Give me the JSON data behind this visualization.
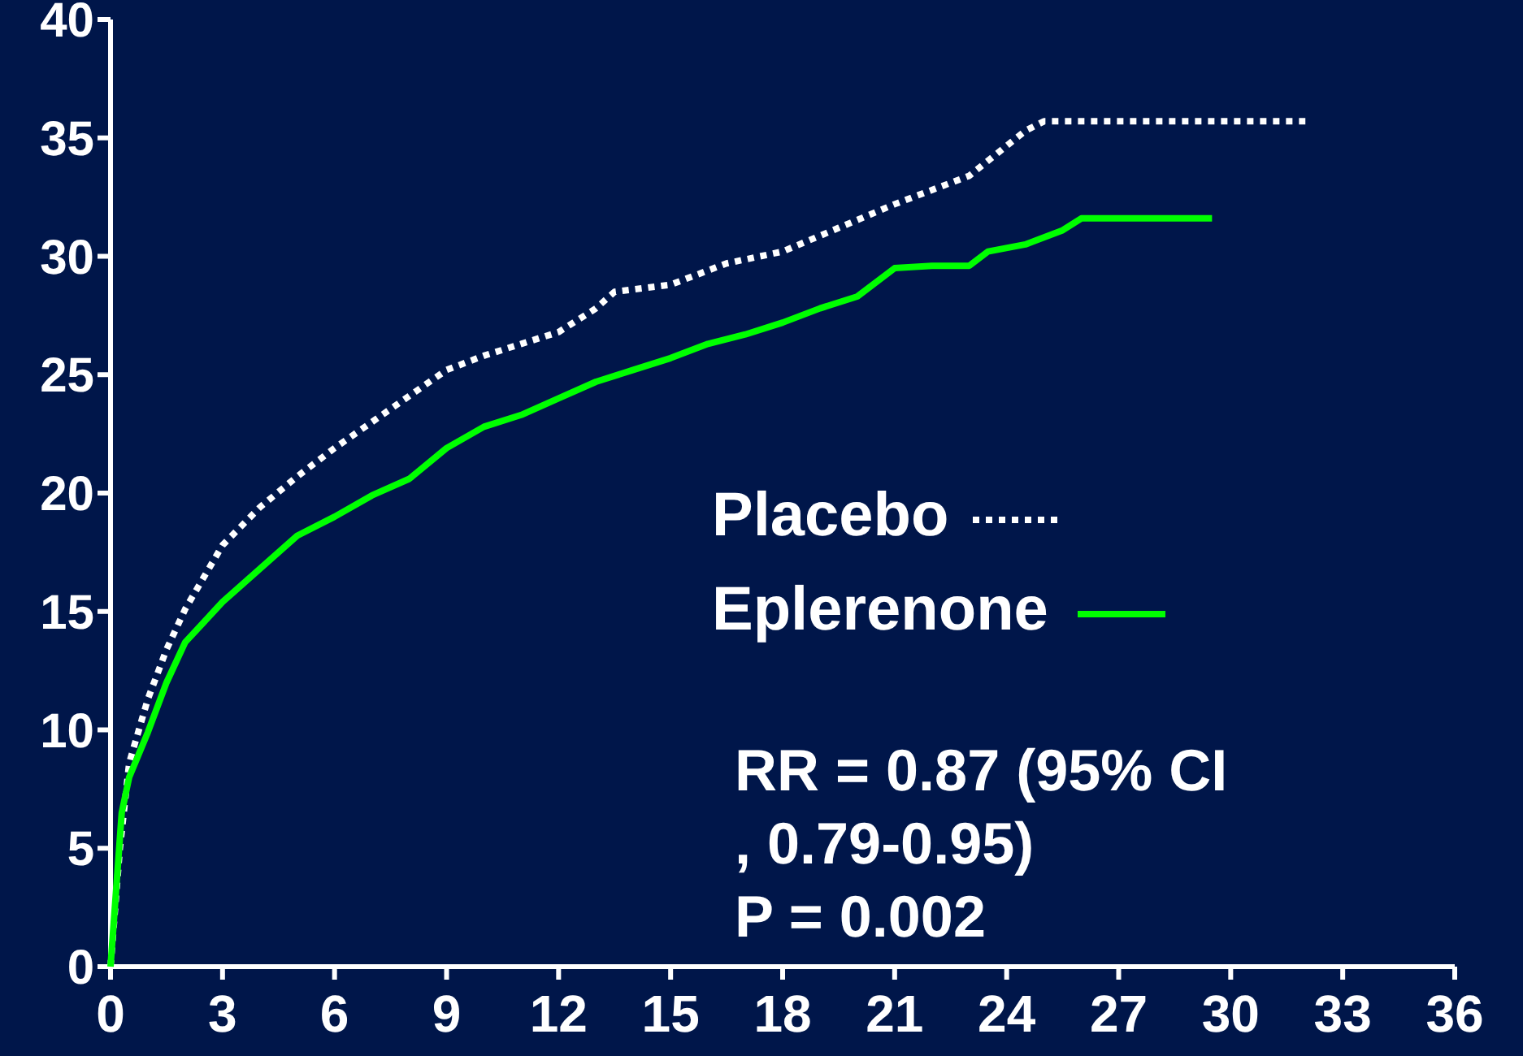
{
  "chart_data": {
    "type": "line",
    "xlim": [
      0,
      36
    ],
    "xticks": [
      0,
      3,
      6,
      9,
      12,
      15,
      18,
      21,
      24,
      27,
      30,
      33,
      36
    ],
    "ylim": [
      0,
      40
    ],
    "yticks": [
      0,
      5,
      10,
      15,
      20,
      25,
      30,
      35,
      40
    ],
    "legend": "right",
    "grid": false,
    "series": [
      {
        "name": "Placebo",
        "color": "#ffffff",
        "line_style": "dotted",
        "x": [
          0,
          0.25,
          0.5,
          1,
          1.5,
          2,
          3,
          4,
          5,
          6,
          7,
          8,
          9,
          10,
          11,
          12,
          13,
          13.5,
          15,
          16.5,
          18,
          19.5,
          21,
          23,
          24.5,
          25,
          28,
          32
        ],
        "values": [
          0,
          5,
          8.6,
          11.3,
          13.4,
          15.1,
          17.8,
          19.4,
          20.7,
          21.9,
          23,
          24.1,
          25.2,
          25.8,
          26.3,
          26.8,
          27.8,
          28.5,
          28.8,
          29.7,
          30.2,
          31.2,
          32.2,
          33.4,
          35.3,
          35.7,
          35.7,
          35.7
        ]
      },
      {
        "name": "Eplerenone",
        "color": "#00ff00",
        "line_style": "solid",
        "x": [
          0,
          0.3,
          0.5,
          1,
          1.5,
          2,
          3,
          4,
          5,
          6,
          7,
          8,
          9,
          10,
          11,
          12,
          13,
          14,
          15,
          16,
          17,
          18,
          19,
          20,
          21,
          22,
          23,
          23.5,
          24.5,
          25.5,
          26,
          29.5
        ],
        "values": [
          0,
          6.5,
          8,
          9.9,
          12,
          13.7,
          15.4,
          16.8,
          18.2,
          19,
          19.9,
          20.6,
          21.9,
          22.8,
          23.3,
          24,
          24.7,
          25.2,
          25.7,
          26.3,
          26.7,
          27.2,
          27.8,
          28.3,
          29.5,
          29.6,
          29.6,
          30.2,
          30.5,
          31.1,
          31.6,
          31.6
        ]
      }
    ],
    "annotations": [
      "RR = 0.87 (95% CI",
      ", 0.79-0.95)",
      "P = 0.002"
    ]
  }
}
